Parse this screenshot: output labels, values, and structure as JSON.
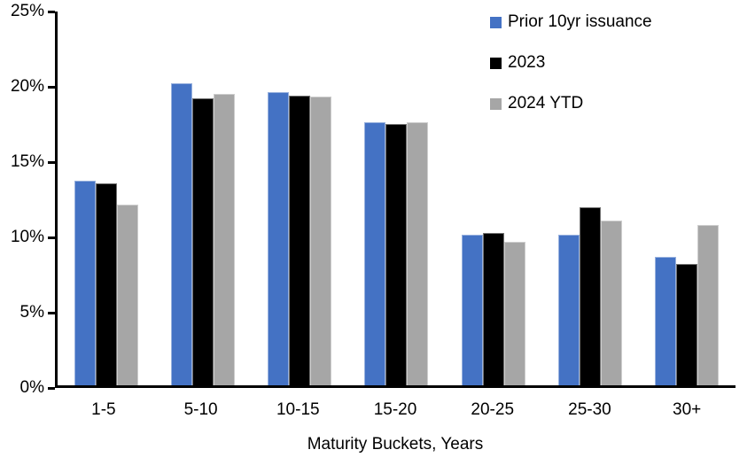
{
  "chart_data": {
    "type": "bar",
    "title": "",
    "xlabel": "Maturity Buckets, Years",
    "ylabel": "",
    "categories": [
      "1-5",
      "5-10",
      "10-15",
      "15-20",
      "20-25",
      "25-30",
      "30+"
    ],
    "series": [
      {
        "name": "Prior 10yr issuance",
        "color": "#4472C4",
        "values": [
          13.7,
          20.2,
          19.6,
          17.6,
          10.1,
          10.1,
          8.6
        ]
      },
      {
        "name": "2023",
        "color": "#000000",
        "values": [
          13.5,
          19.2,
          19.4,
          17.5,
          10.2,
          11.9,
          8.1
        ]
      },
      {
        "name": "2024 YTD",
        "color": "#A6A6A6",
        "values": [
          12.1,
          19.5,
          19.3,
          17.6,
          9.6,
          11.0,
          10.7
        ]
      }
    ],
    "ylim": [
      0,
      25
    ],
    "ytick_step": 5,
    "yticks": [
      "0%",
      "5%",
      "10%",
      "15%",
      "20%",
      "25%"
    ],
    "grid": false,
    "legend_position": "top-right",
    "axis_color": "#000000",
    "background_color": "#FFFFFF"
  }
}
